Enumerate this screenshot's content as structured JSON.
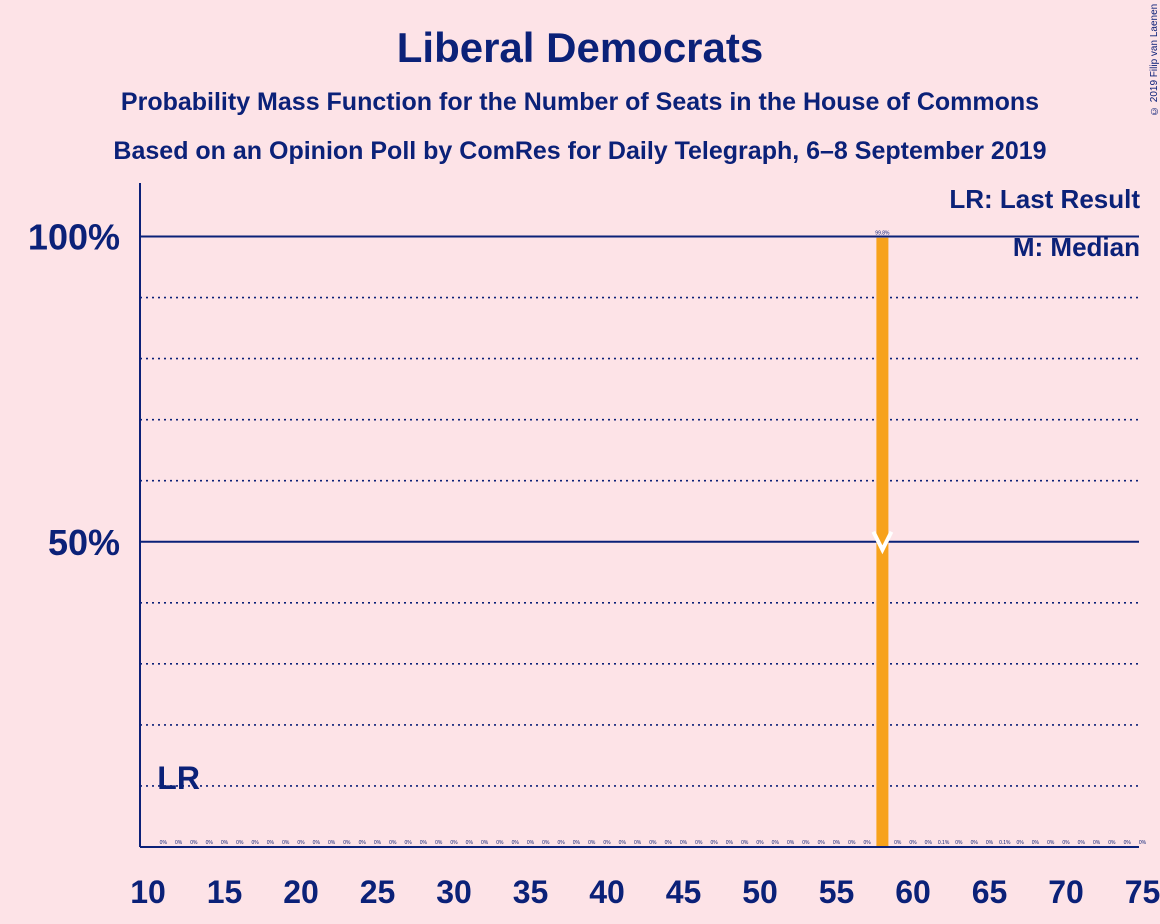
{
  "header": {
    "title": "Liberal Democrats",
    "subtitle1": "Probability Mass Function for the Number of Seats in the House of Commons",
    "subtitle2": "Based on an Opinion Poll by ComRes for Daily Telegraph, 6–8 September 2019",
    "copyright": "© 2019 Filip van Laenen"
  },
  "legend": {
    "last_result": "LR: Last Result",
    "median": "M: Median"
  },
  "colors": {
    "background": "#fde3e7",
    "text": "#0b2178",
    "bar": "#f7a21b",
    "median_marker": "#ffffff"
  },
  "chart_data": {
    "type": "bar",
    "xlim": [
      10,
      75
    ],
    "ylim": [
      0,
      100
    ],
    "y_ticks_labeled": [
      {
        "value": 50,
        "label": "50%"
      },
      {
        "value": 100,
        "label": "100%"
      }
    ],
    "y_gridlines_dotted": [
      10,
      20,
      30,
      40,
      60,
      70,
      80,
      90
    ],
    "x_ticks": [
      10,
      15,
      20,
      25,
      30,
      35,
      40,
      45,
      50,
      55,
      60,
      65,
      70,
      75
    ],
    "x": [
      11,
      12,
      13,
      14,
      15,
      16,
      17,
      18,
      19,
      20,
      21,
      22,
      23,
      24,
      25,
      26,
      27,
      28,
      29,
      30,
      31,
      32,
      33,
      34,
      35,
      36,
      37,
      38,
      39,
      40,
      41,
      42,
      43,
      44,
      45,
      46,
      47,
      48,
      49,
      50,
      51,
      52,
      53,
      54,
      55,
      56,
      57,
      58,
      59,
      60,
      61,
      62,
      63,
      64,
      65,
      66,
      67,
      68,
      69,
      70,
      71,
      72,
      73,
      74,
      75
    ],
    "values": [
      0,
      0,
      0,
      0,
      0,
      0,
      0,
      0,
      0,
      0,
      0,
      0,
      0,
      0,
      0,
      0,
      0,
      0,
      0,
      0,
      0,
      0,
      0,
      0,
      0,
      0,
      0,
      0,
      0,
      0,
      0,
      0,
      0,
      0,
      0,
      0,
      0,
      0,
      0,
      0,
      0,
      0,
      0,
      0,
      0,
      0,
      0,
      99.8,
      0,
      0,
      0,
      0.1,
      0,
      0,
      0,
      0.1,
      0,
      0,
      0,
      0,
      0,
      0,
      0,
      0,
      0
    ],
    "value_labels": [
      "0%",
      "0%",
      "0%",
      "0%",
      "0%",
      "0%",
      "0%",
      "0%",
      "0%",
      "0%",
      "0%",
      "0%",
      "0%",
      "0%",
      "0%",
      "0%",
      "0%",
      "0%",
      "0%",
      "0%",
      "0%",
      "0%",
      "0%",
      "0%",
      "0%",
      "0%",
      "0%",
      "0%",
      "0%",
      "0%",
      "0%",
      "0%",
      "0%",
      "0%",
      "0%",
      "0%",
      "0%",
      "0%",
      "0%",
      "0%",
      "0%",
      "0%",
      "0%",
      "0%",
      "0%",
      "0%",
      "0%",
      "99.8%",
      "0%",
      "0%",
      "0%",
      "0.1%",
      "0%",
      "0%",
      "0%",
      "0.1%",
      "0%",
      "0%",
      "0%",
      "0%",
      "0%",
      "0%",
      "0%",
      "0%",
      "0%"
    ],
    "last_result_seat": 12,
    "last_result_label": "LR",
    "median_seat": 58,
    "median_value": 50
  }
}
